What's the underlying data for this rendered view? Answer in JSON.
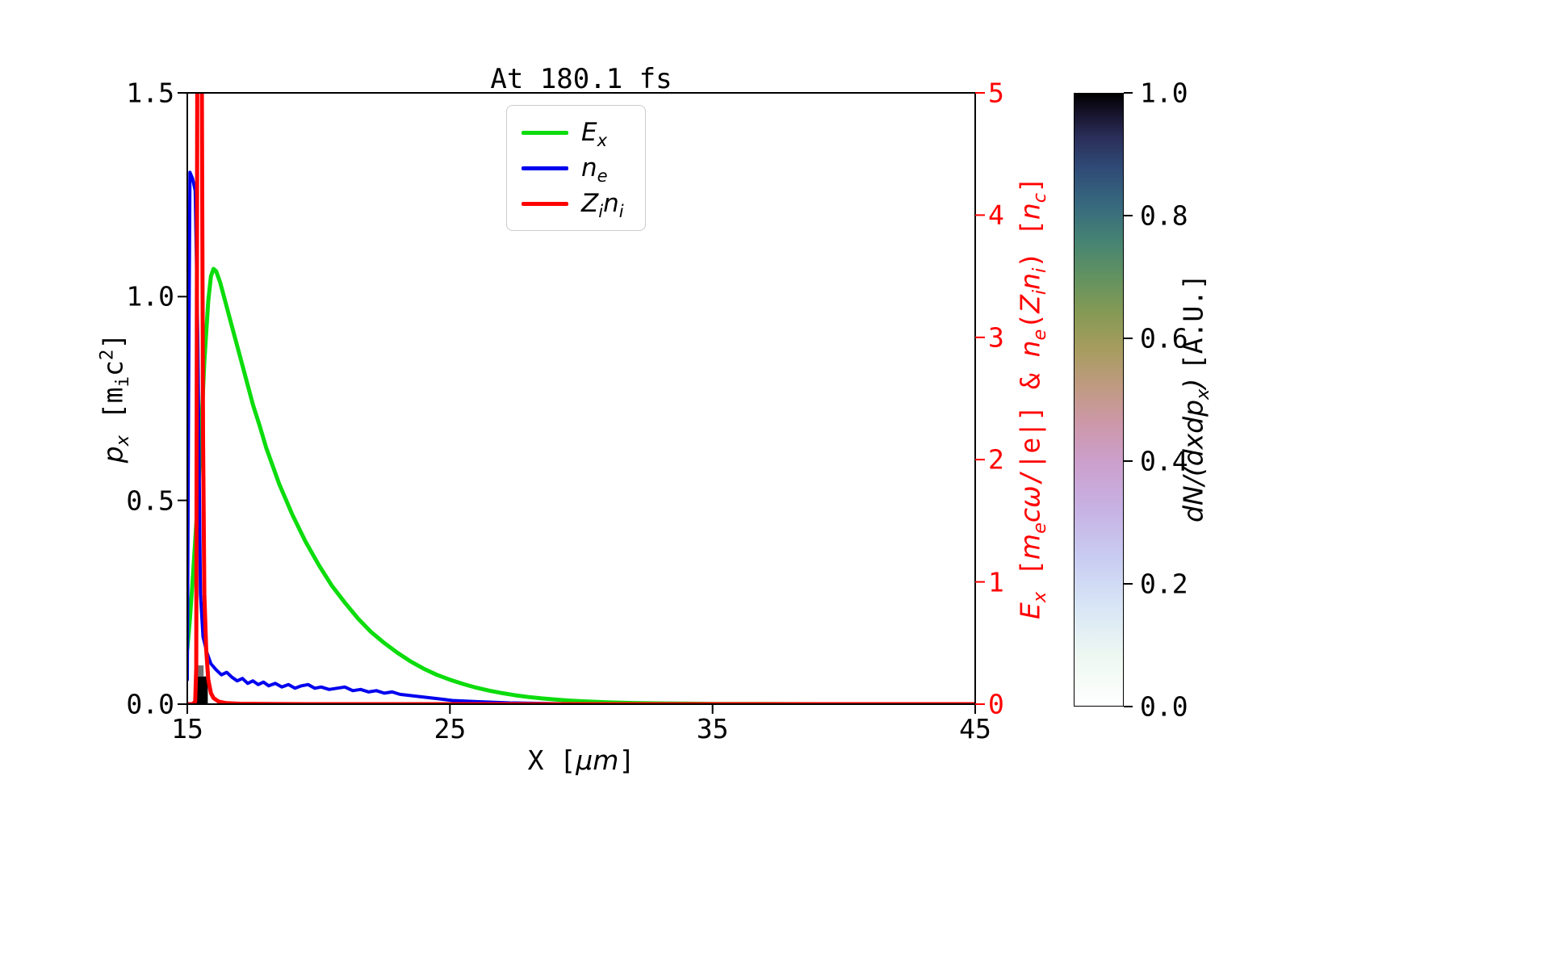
{
  "title": "At 180.1 fs",
  "axes": {
    "x": {
      "label_html": "X [<i>μm</i>]",
      "tick_labels": [
        "15",
        "25",
        "35",
        "45"
      ],
      "tick_values": [
        15,
        25,
        35,
        45
      ]
    },
    "y_left": {
      "label_html": "<i>p<sub>x</sub></i> <span class='mono'>[m<sub>i</sub>c<sup>2</sup>]</span>",
      "tick_labels": [
        "0.0",
        "0.5",
        "1.0",
        "1.5"
      ],
      "tick_values": [
        0,
        0.5,
        1.0,
        1.5
      ]
    },
    "y_right": {
      "label_html": "<i>E<sub>x</sub></i> [<i>m<sub>e</sub>cω</i>/|e|] &amp; <i>n<sub>e</sub></i>(<i>Z<sub>i</sub>n<sub>i</sub></i>) [<i>n<sub>c</sub></i>]",
      "tick_labels": [
        "0",
        "1",
        "2",
        "3",
        "4",
        "5"
      ],
      "tick_values": [
        0,
        1,
        2,
        3,
        4,
        5
      ],
      "color": "#ff0000"
    }
  },
  "legend": {
    "items": [
      {
        "label_html": "<i>E<sub>x</sub></i>",
        "color": "#0ddc0d"
      },
      {
        "label_html": "<i>n<sub>e</sub></i>",
        "color": "#0000ee"
      },
      {
        "label_html": "<i>Z<sub>i</sub>n<sub>i</sub></i>",
        "color": "#ff0000"
      }
    ]
  },
  "colorbar": {
    "label_html": "dN/(dxdp<sub>x</sub>) <span class='mono'>[A.U.]</span>",
    "tick_labels": [
      "0.0",
      "0.2",
      "0.4",
      "0.6",
      "0.8",
      "1.0"
    ],
    "tick_values": [
      0,
      0.2,
      0.4,
      0.6,
      0.8,
      1.0
    ],
    "stops": [
      [
        0.0,
        "#ffffff"
      ],
      [
        0.08,
        "#eef8f1"
      ],
      [
        0.16,
        "#d8e6f6"
      ],
      [
        0.24,
        "#c9cdf2"
      ],
      [
        0.32,
        "#c7b2e4"
      ],
      [
        0.4,
        "#cc9fcc"
      ],
      [
        0.46,
        "#cd98a9"
      ],
      [
        0.52,
        "#c09a82"
      ],
      [
        0.58,
        "#a89c60"
      ],
      [
        0.64,
        "#869a54"
      ],
      [
        0.7,
        "#629260"
      ],
      [
        0.76,
        "#458373"
      ],
      [
        0.82,
        "#37687e"
      ],
      [
        0.88,
        "#2f4a76"
      ],
      [
        0.93,
        "#2a2d57"
      ],
      [
        0.97,
        "#151228"
      ],
      [
        1.0,
        "#000000"
      ]
    ]
  },
  "chart_data": {
    "type": "line",
    "title": "At 180.1 fs",
    "xlabel": "X [μm]",
    "xlim": [
      15,
      45
    ],
    "ylabel_left": "p_x [m_i c^2]",
    "ylim_left": [
      0,
      1.5
    ],
    "ylabel_right": "E_x [m_e c ω/|e|] & n_e(Z_i n_i) [n_c]",
    "ylim_right": [
      0,
      5
    ],
    "grid": false,
    "legend_position": "upper center-left",
    "series": [
      {
        "name": "E_x",
        "axis": "right",
        "color": "#0ddc0d",
        "width": 5,
        "x": [
          15.0,
          15.1,
          15.2,
          15.35,
          15.5,
          15.65,
          15.8,
          15.9,
          16.0,
          16.1,
          16.25,
          16.5,
          16.75,
          17.0,
          17.25,
          17.5,
          17.75,
          18.0,
          18.5,
          19.0,
          19.5,
          20.0,
          20.5,
          21.0,
          21.5,
          22.0,
          22.5,
          23.0,
          23.5,
          24.0,
          24.5,
          25.0,
          25.5,
          26.0,
          26.5,
          27.0,
          27.5,
          28.0,
          28.5,
          29.0,
          29.5,
          30.0,
          31.0,
          32.0,
          33.0,
          34.0,
          35.0,
          37.0,
          40.0,
          45.0
        ],
        "y": [
          0.45,
          0.7,
          1.0,
          1.5,
          2.1,
          2.8,
          3.3,
          3.5,
          3.56,
          3.54,
          3.45,
          3.25,
          3.05,
          2.85,
          2.65,
          2.45,
          2.28,
          2.1,
          1.8,
          1.55,
          1.33,
          1.14,
          0.97,
          0.83,
          0.7,
          0.59,
          0.5,
          0.42,
          0.35,
          0.29,
          0.24,
          0.2,
          0.165,
          0.135,
          0.11,
          0.09,
          0.072,
          0.058,
          0.047,
          0.038,
          0.03,
          0.024,
          0.015,
          0.009,
          0.006,
          0.004,
          0.002,
          0.001,
          0.0,
          0.0
        ]
      },
      {
        "name": "n_e",
        "axis": "right",
        "color": "#0000ee",
        "width": 4,
        "x": [
          15.0,
          15.05,
          15.1,
          15.2,
          15.3,
          15.4,
          15.5,
          15.6,
          15.75,
          15.9,
          16.1,
          16.3,
          16.5,
          16.7,
          16.9,
          17.1,
          17.3,
          17.5,
          17.7,
          17.9,
          18.1,
          18.35,
          18.6,
          18.85,
          19.1,
          19.35,
          19.6,
          19.85,
          20.1,
          20.4,
          20.7,
          21.0,
          21.3,
          21.6,
          21.9,
          22.2,
          22.5,
          22.8,
          23.1,
          23.5,
          23.9,
          24.3,
          24.7,
          25.1,
          25.6,
          26.1,
          26.7,
          27.3,
          28.0,
          29.0,
          30.0,
          32.0,
          35.0,
          40.0,
          45.0
        ],
        "y": [
          0.2,
          2.5,
          4.35,
          4.3,
          4.2,
          3.0,
          0.9,
          0.55,
          0.42,
          0.33,
          0.28,
          0.24,
          0.26,
          0.22,
          0.19,
          0.21,
          0.17,
          0.19,
          0.16,
          0.18,
          0.15,
          0.17,
          0.14,
          0.16,
          0.13,
          0.15,
          0.16,
          0.13,
          0.14,
          0.12,
          0.13,
          0.14,
          0.11,
          0.12,
          0.1,
          0.11,
          0.09,
          0.1,
          0.08,
          0.07,
          0.06,
          0.05,
          0.04,
          0.03,
          0.025,
          0.02,
          0.015,
          0.01,
          0.007,
          0.004,
          0.002,
          0.001,
          0.0,
          0.0,
          0.0
        ]
      },
      {
        "name": "Z_i n_i",
        "axis": "right",
        "color": "#ff0000",
        "width": 5,
        "x": [
          15.0,
          15.2,
          15.3,
          15.34,
          15.38,
          15.55,
          15.6,
          15.65,
          15.72,
          15.8,
          15.9,
          16.0,
          16.2,
          16.5,
          17.0,
          18.0,
          20.0,
          25.0,
          35.0,
          45.0
        ],
        "y": [
          0.0,
          0.0,
          0.02,
          0.3,
          5.3,
          5.3,
          2.2,
          0.9,
          0.45,
          0.2,
          0.09,
          0.05,
          0.02,
          0.008,
          0.003,
          0.001,
          0.0,
          0.0,
          0.0,
          0.0
        ]
      }
    ],
    "phase_space_cells": [
      {
        "x0": 15.35,
        "x1": 15.78,
        "p0": 0.0,
        "p1": 0.068,
        "color": "#000000"
      },
      {
        "x0": 15.38,
        "x1": 15.62,
        "p0": 0.068,
        "p1": 0.095,
        "color": "#6f6f6f"
      }
    ]
  }
}
